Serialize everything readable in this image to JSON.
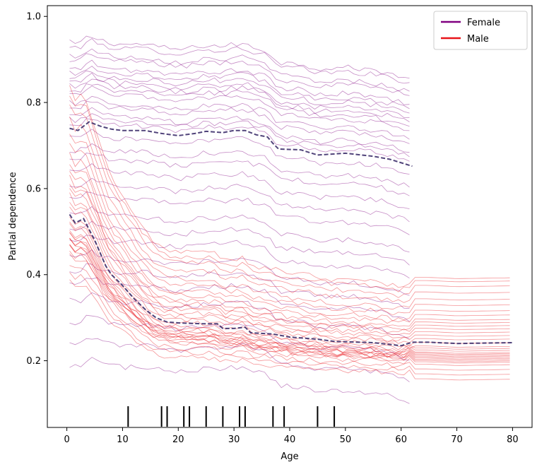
{
  "chart_data": {
    "type": "line",
    "title": "",
    "xlabel": "Age",
    "ylabel": "Partial dependence",
    "xlim": [
      -3.5,
      83.5
    ],
    "ylim": [
      0.045,
      1.025
    ],
    "xticks": [
      "0",
      "10",
      "20",
      "30",
      "40",
      "50",
      "60",
      "70",
      "80"
    ],
    "yticks": [
      "0.2",
      "0.4",
      "0.6",
      "0.8",
      "1.0"
    ],
    "legend": {
      "position": "top-right"
    },
    "series": [
      {
        "name": "Female",
        "color": "#800080",
        "x_max": 62,
        "anchors": [
          {
            "x": 0.5,
            "y": 0.74
          },
          {
            "x": 2,
            "y": 0.735
          },
          {
            "x": 4,
            "y": 0.755
          },
          {
            "x": 6,
            "y": 0.745
          },
          {
            "x": 8,
            "y": 0.738
          },
          {
            "x": 10,
            "y": 0.735
          },
          {
            "x": 14,
            "y": 0.735
          },
          {
            "x": 17,
            "y": 0.728
          },
          {
            "x": 20,
            "y": 0.723
          },
          {
            "x": 23,
            "y": 0.728
          },
          {
            "x": 25,
            "y": 0.733
          },
          {
            "x": 28,
            "y": 0.73
          },
          {
            "x": 30,
            "y": 0.735
          },
          {
            "x": 32,
            "y": 0.735
          },
          {
            "x": 34,
            "y": 0.725
          },
          {
            "x": 36,
            "y": 0.72
          },
          {
            "x": 37,
            "y": 0.705
          },
          {
            "x": 38,
            "y": 0.692
          },
          {
            "x": 42,
            "y": 0.69
          },
          {
            "x": 45,
            "y": 0.678
          },
          {
            "x": 50,
            "y": 0.682
          },
          {
            "x": 55,
            "y": 0.675
          },
          {
            "x": 58,
            "y": 0.668
          },
          {
            "x": 62,
            "y": 0.652
          }
        ],
        "ice_curve_offsets": [
          0.2,
          0.19,
          0.17,
          0.16,
          0.14,
          0.13,
          0.12,
          0.11,
          0.1,
          0.09,
          0.08,
          0.06,
          0.05,
          0.03,
          0.02,
          0.01,
          -0.02,
          -0.05,
          -0.07,
          -0.1,
          -0.13,
          -0.16,
          -0.2,
          -0.23,
          -0.26,
          -0.3,
          -0.33,
          -0.36,
          -0.4,
          -0.45,
          -0.5,
          -0.55
        ]
      },
      {
        "name": "Male",
        "color": "#e8141a",
        "x_max": 80,
        "anchors": [
          {
            "x": 0.5,
            "y": 0.54
          },
          {
            "x": 1.5,
            "y": 0.52
          },
          {
            "x": 3,
            "y": 0.53
          },
          {
            "x": 4,
            "y": 0.505
          },
          {
            "x": 5,
            "y": 0.48
          },
          {
            "x": 6,
            "y": 0.45
          },
          {
            "x": 7,
            "y": 0.42
          },
          {
            "x": 8,
            "y": 0.4
          },
          {
            "x": 10,
            "y": 0.375
          },
          {
            "x": 12,
            "y": 0.345
          },
          {
            "x": 14,
            "y": 0.32
          },
          {
            "x": 16,
            "y": 0.3
          },
          {
            "x": 18,
            "y": 0.29
          },
          {
            "x": 20,
            "y": 0.288
          },
          {
            "x": 24,
            "y": 0.286
          },
          {
            "x": 27,
            "y": 0.286
          },
          {
            "x": 28,
            "y": 0.275
          },
          {
            "x": 30,
            "y": 0.275
          },
          {
            "x": 32,
            "y": 0.278
          },
          {
            "x": 33,
            "y": 0.265
          },
          {
            "x": 37,
            "y": 0.262
          },
          {
            "x": 40,
            "y": 0.255
          },
          {
            "x": 45,
            "y": 0.25
          },
          {
            "x": 48,
            "y": 0.245
          },
          {
            "x": 55,
            "y": 0.242
          },
          {
            "x": 60,
            "y": 0.235
          },
          {
            "x": 62,
            "y": 0.243
          },
          {
            "x": 65,
            "y": 0.243
          },
          {
            "x": 70,
            "y": 0.24
          },
          {
            "x": 80,
            "y": 0.242
          }
        ],
        "ice_curve_offsets": [
          0.45,
          0.42,
          0.38,
          0.33,
          0.28,
          0.24,
          0.2,
          0.17,
          0.14,
          0.12,
          0.1,
          0.08,
          0.06,
          0.04,
          0.02,
          0.0,
          -0.02,
          -0.03,
          -0.04,
          -0.05,
          -0.055,
          -0.06,
          -0.065,
          -0.07,
          -0.075,
          -0.08,
          -0.085,
          -0.09,
          -0.1,
          -0.12,
          -0.14,
          -0.16
        ]
      }
    ],
    "average_line_style": "dashed",
    "average_line_color": "#3d2f6b",
    "rug_x": [
      11,
      17,
      18,
      21,
      22,
      25,
      28,
      31,
      32,
      37,
      39,
      45,
      48
    ]
  }
}
